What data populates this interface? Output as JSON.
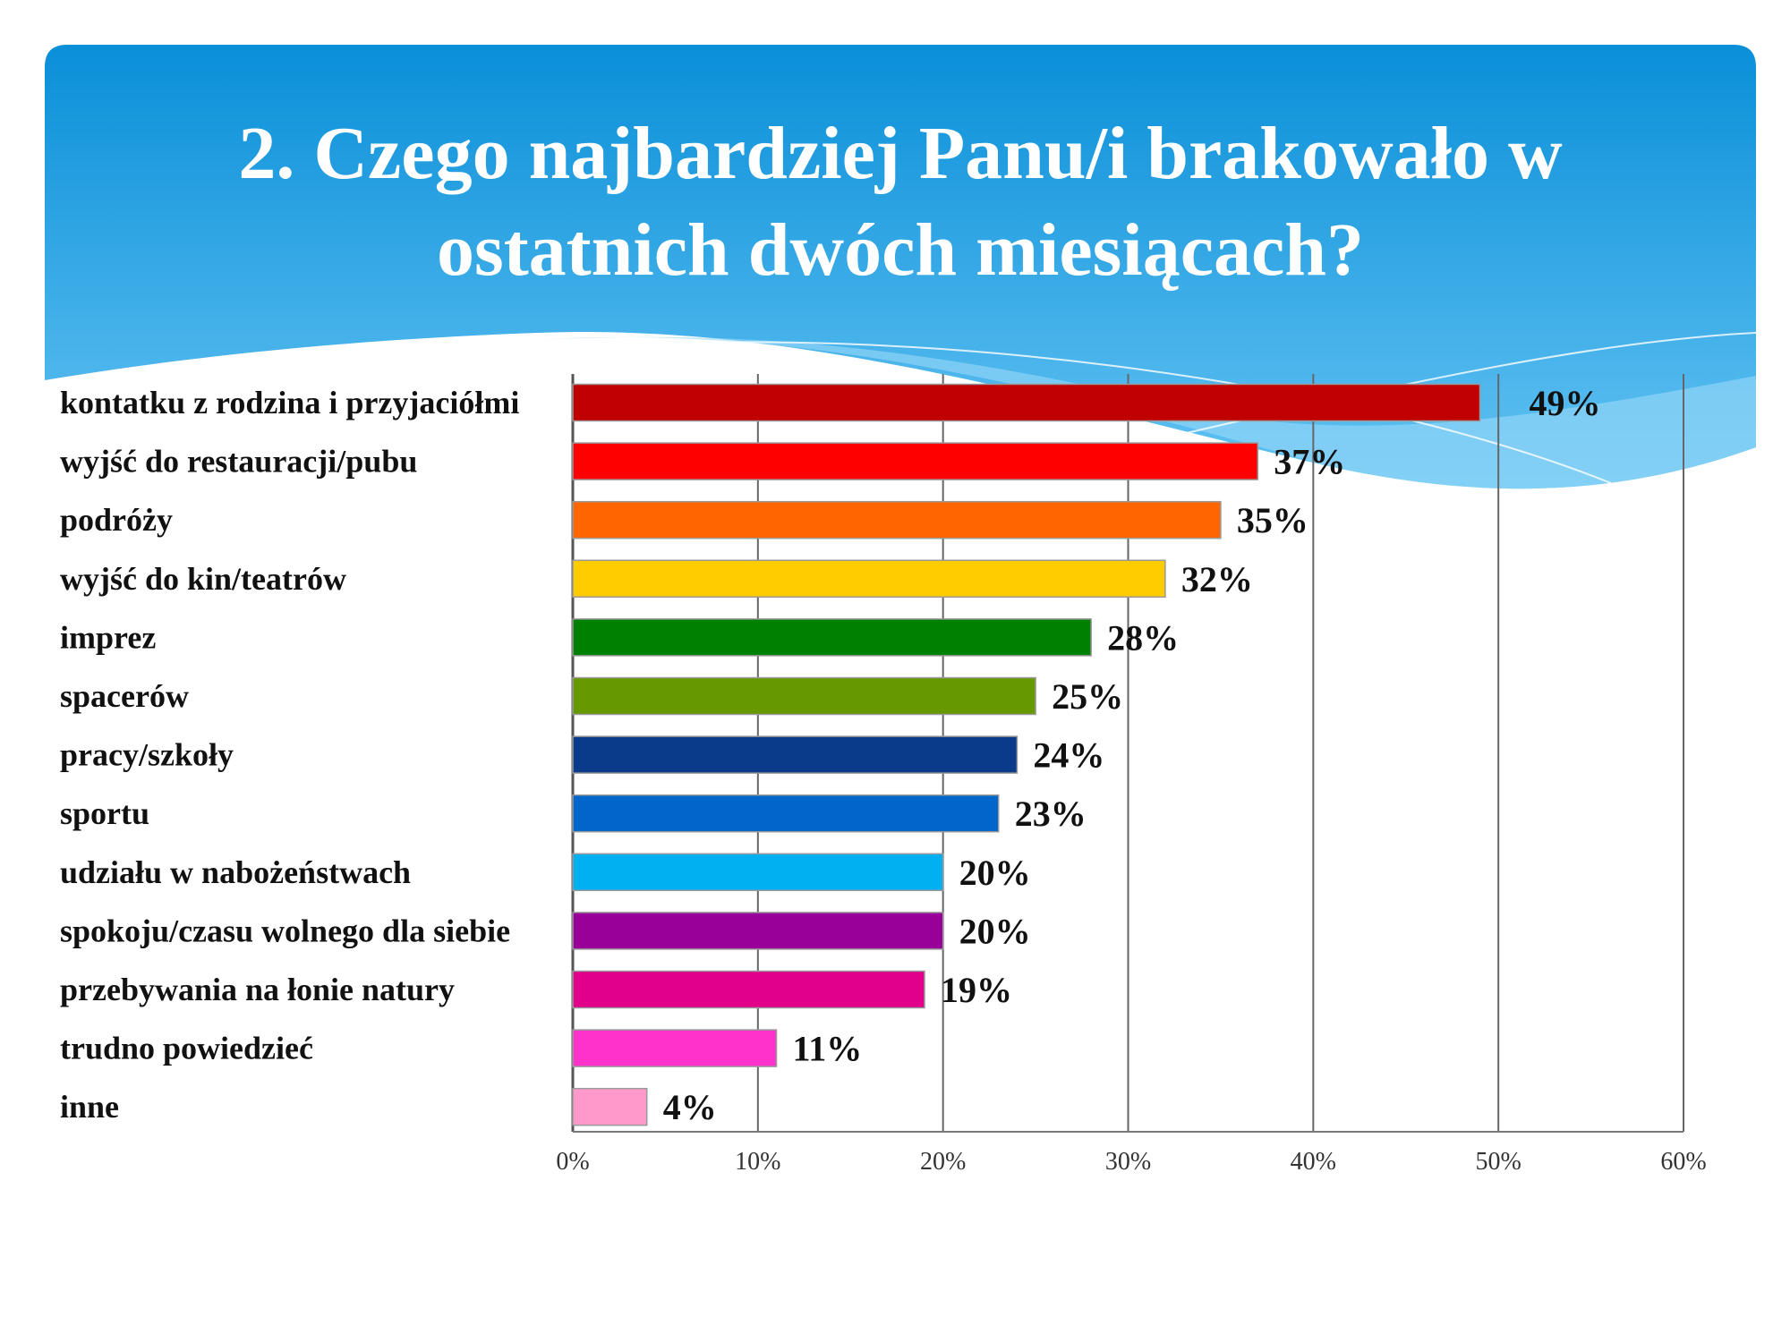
{
  "title": {
    "line1": "2. Czego najbardziej Panu/i brakowało w",
    "line2": "ostatnich dwóch miesiącach?"
  },
  "colors": {
    "banner_top": "#0a8fd8",
    "banner_bottom": "#5cc0f2"
  },
  "chart_data": {
    "type": "bar",
    "orientation": "horizontal",
    "title": "2. Czego najbardziej Panu/i brakowało w ostatnich dwóch miesiącach?",
    "categories": [
      "kontatku z rodzina i przyjaciółmi",
      "wyjść do restauracji/pubu",
      "podróży",
      "wyjść do kin/teatrów",
      "imprez",
      "spacerów",
      "pracy/szkoły",
      "sportu",
      "udziału w nabożeństwach",
      "spokoju/czasu wolnego dla siebie",
      "przebywania na łonie natury",
      "trudno powiedzieć",
      "inne"
    ],
    "values": [
      49,
      37,
      35,
      32,
      28,
      25,
      24,
      23,
      20,
      20,
      19,
      11,
      4
    ],
    "value_labels": [
      "49%",
      "37%",
      "35%",
      "32%",
      "28%",
      "25%",
      "24%",
      "23%",
      "20%",
      "20%",
      "19%",
      "11%",
      "4%"
    ],
    "bar_colors": [
      "#c00000",
      "#ff0000",
      "#ff6600",
      "#ffcc00",
      "#008000",
      "#669900",
      "#0a3a8a",
      "#0066cc",
      "#00b0f0",
      "#990099",
      "#e0008a",
      "#ff33cc",
      "#ff99cc"
    ],
    "xlim": [
      0,
      60
    ],
    "xticks": [
      "0%",
      "10%",
      "20%",
      "30%",
      "40%",
      "50%",
      "60%"
    ],
    "grid": true,
    "xlabel": "",
    "ylabel": ""
  }
}
